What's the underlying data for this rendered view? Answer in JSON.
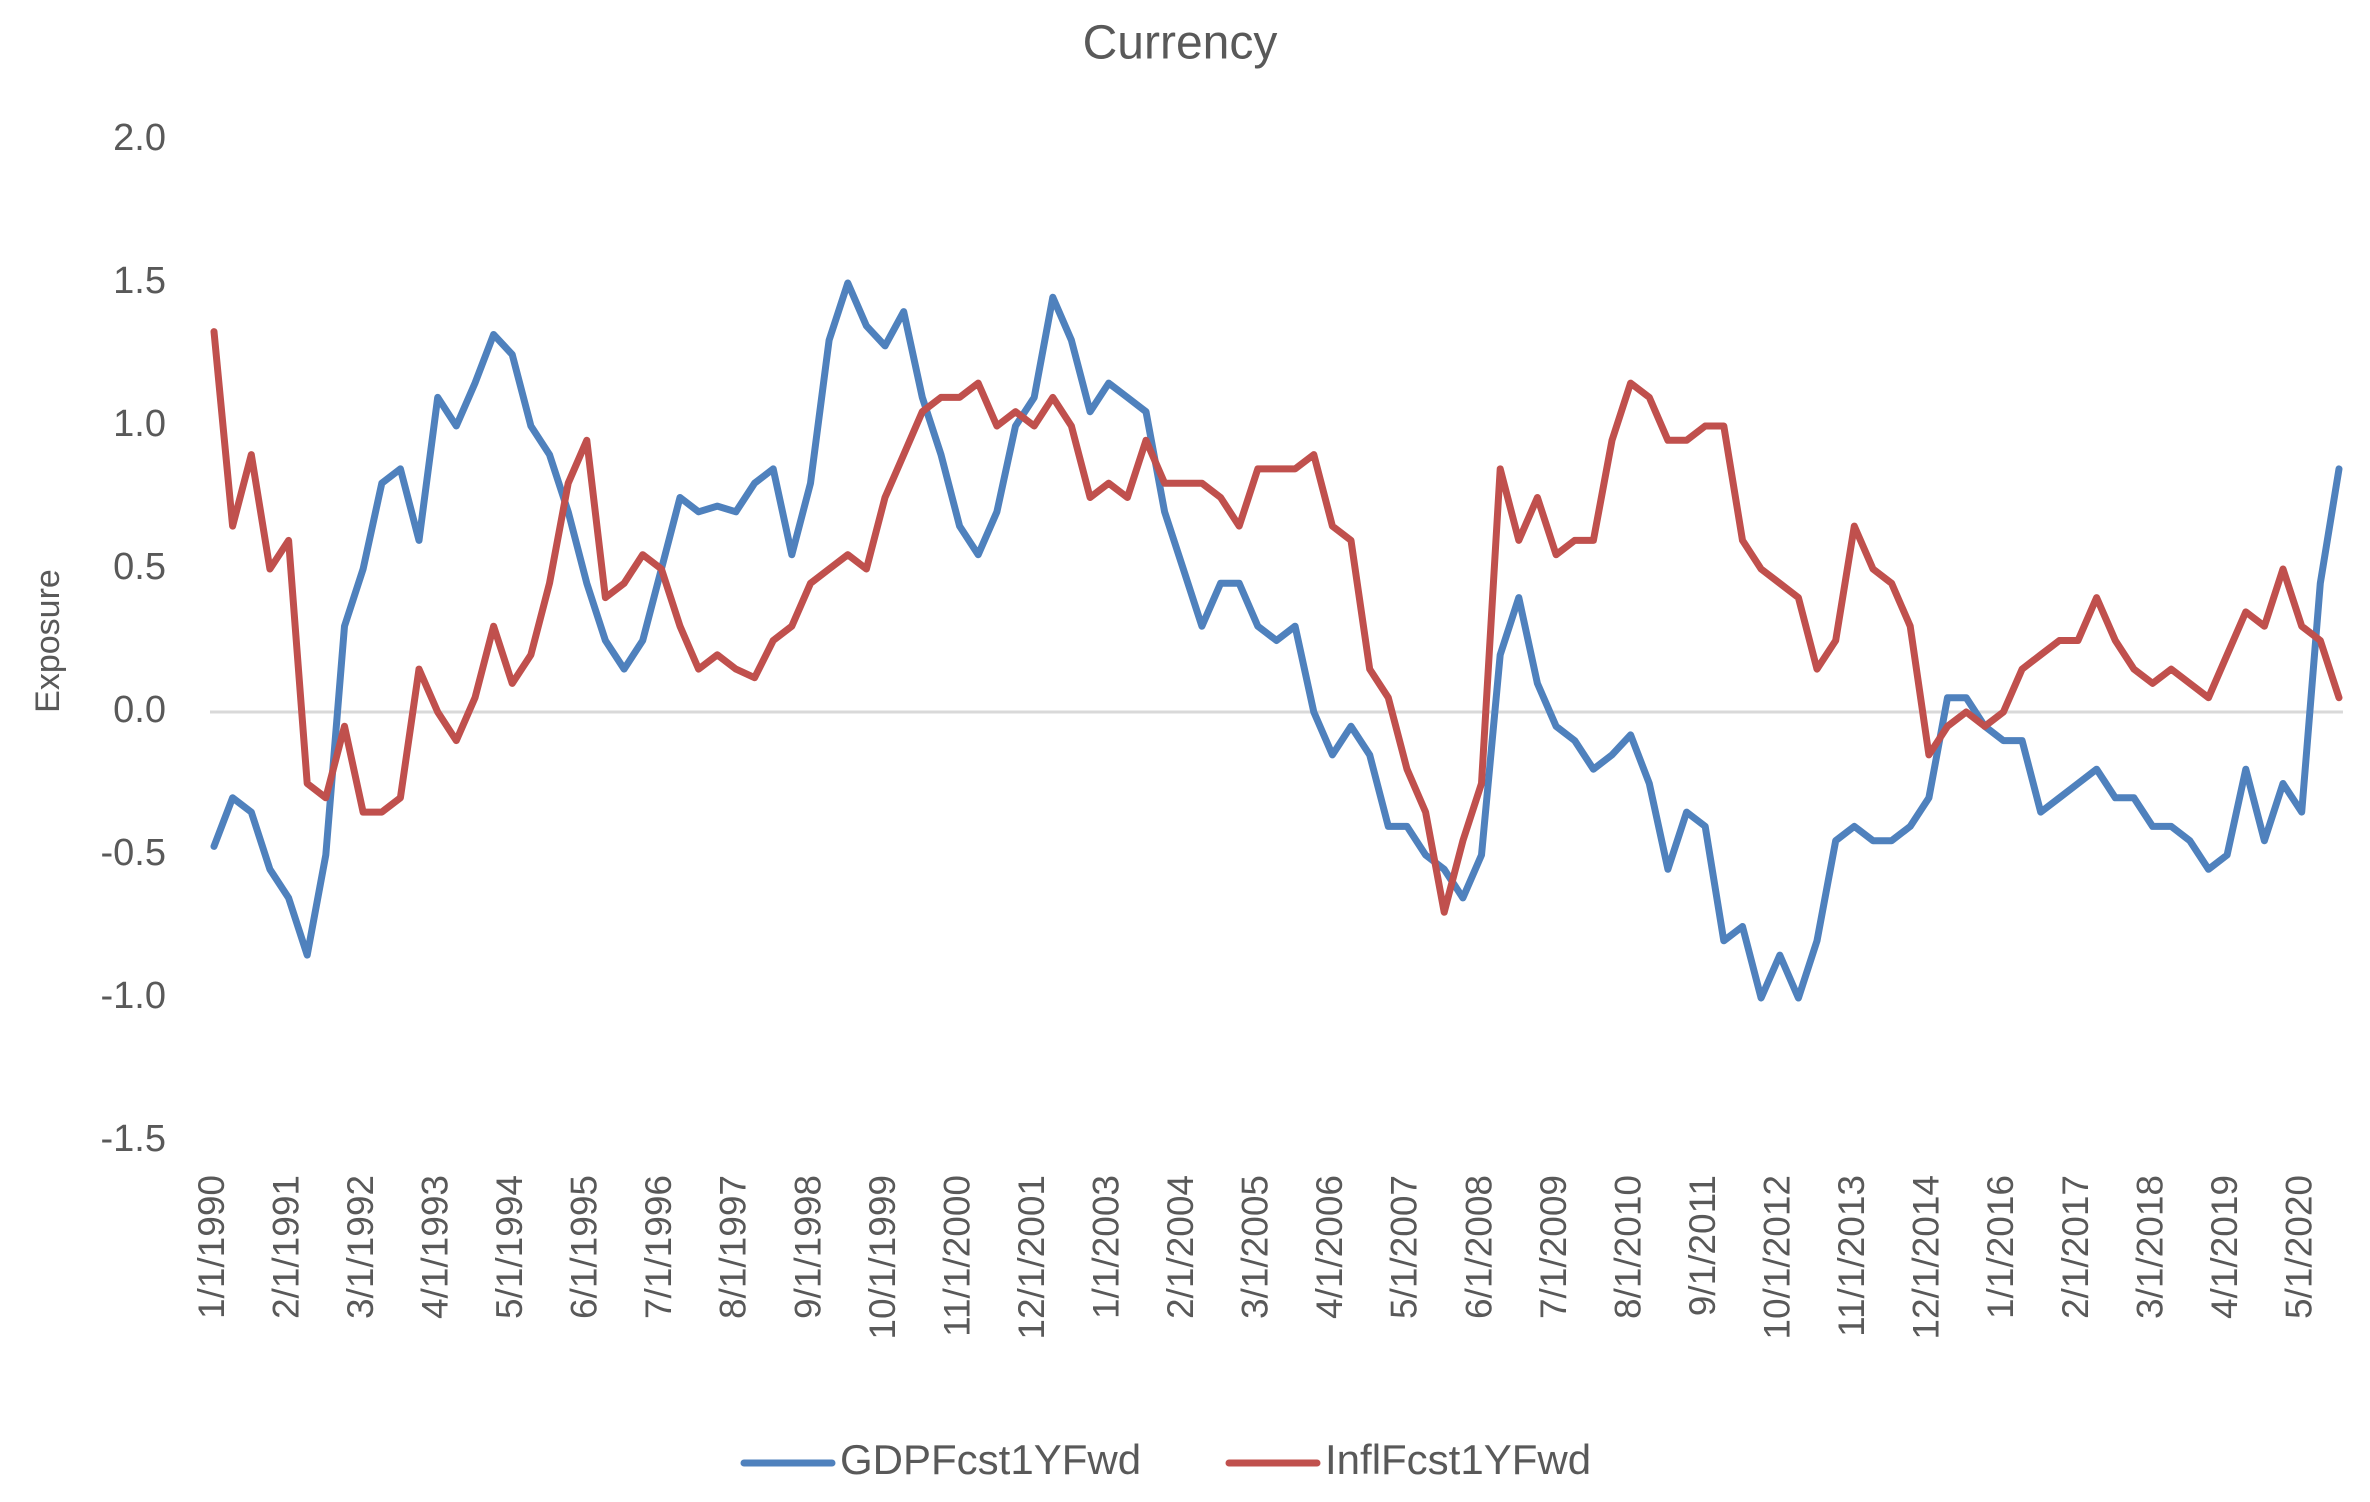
{
  "chart_data": {
    "type": "line",
    "title": "Currency",
    "y_label": "Exposure",
    "categories": [
      "1/1/1990",
      null,
      null,
      null,
      "2/1/1991",
      null,
      null,
      null,
      "3/1/1992",
      null,
      null,
      null,
      "4/1/1993",
      null,
      null,
      null,
      "5/1/1994",
      null,
      null,
      null,
      "6/1/1995",
      null,
      null,
      null,
      "7/1/1996",
      null,
      null,
      null,
      "8/1/1997",
      null,
      null,
      null,
      "9/1/1998",
      null,
      null,
      null,
      "10/1/1999",
      null,
      null,
      null,
      "11/1/2000",
      null,
      null,
      null,
      "12/1/2001",
      null,
      null,
      null,
      "1/1/2003",
      null,
      null,
      null,
      "2/1/2004",
      null,
      null,
      null,
      "3/1/2005",
      null,
      null,
      null,
      "4/1/2006",
      null,
      null,
      null,
      "5/1/2007",
      null,
      null,
      null,
      "6/1/2008",
      null,
      null,
      null,
      "7/1/2009",
      null,
      null,
      null,
      "8/1/2010",
      null,
      null,
      null,
      "9/1/2011",
      null,
      null,
      null,
      "10/1/2012",
      null,
      null,
      null,
      "11/1/2013",
      null,
      null,
      null,
      "12/1/2014",
      null,
      null,
      null,
      "1/1/2016",
      null,
      null,
      null,
      "2/1/2017",
      null,
      null,
      null,
      "3/1/2018",
      null,
      null,
      null,
      "4/1/2019",
      null,
      null,
      null,
      "5/1/2020",
      null,
      null
    ],
    "series": [
      {
        "name": "GDPFcst1YFwd",
        "color": "#4f81bd",
        "values": [
          -0.47,
          -0.3,
          -0.35,
          -0.55,
          -0.65,
          -0.85,
          -0.5,
          0.3,
          0.5,
          0.8,
          0.85,
          0.6,
          1.1,
          1.0,
          1.15,
          1.32,
          1.25,
          1.0,
          0.9,
          0.7,
          0.45,
          0.25,
          0.15,
          0.25,
          0.5,
          0.75,
          0.7,
          0.72,
          0.7,
          0.8,
          0.85,
          0.55,
          0.8,
          1.3,
          1.5,
          1.35,
          1.28,
          1.4,
          1.1,
          0.9,
          0.65,
          0.55,
          0.7,
          1.0,
          1.1,
          1.45,
          1.3,
          1.05,
          1.15,
          1.1,
          1.05,
          0.7,
          0.5,
          0.3,
          0.45,
          0.45,
          0.3,
          0.25,
          0.3,
          0.0,
          -0.15,
          -0.05,
          -0.15,
          -0.4,
          -0.4,
          -0.5,
          -0.55,
          -0.65,
          -0.5,
          0.2,
          0.4,
          0.1,
          -0.05,
          -0.1,
          -0.2,
          -0.15,
          -0.08,
          -0.25,
          -0.55,
          -0.35,
          -0.4,
          -0.8,
          -0.75,
          -1.0,
          -0.85,
          -1.0,
          -0.8,
          -0.45,
          -0.4,
          -0.45,
          -0.45,
          -0.4,
          -0.3,
          0.05,
          0.05,
          -0.05,
          -0.1,
          -0.1,
          -0.35,
          -0.3,
          -0.25,
          -0.2,
          -0.3,
          -0.3,
          -0.4,
          -0.4,
          -0.45,
          -0.55,
          -0.5,
          -0.2,
          -0.45,
          -0.25,
          -0.35,
          0.45,
          0.85
        ]
      },
      {
        "name": "InflFcst1YFwd",
        "color": "#c0504d",
        "values": [
          1.33,
          0.65,
          0.9,
          0.5,
          0.6,
          -0.25,
          -0.3,
          -0.05,
          -0.35,
          -0.35,
          -0.3,
          0.15,
          0.0,
          -0.1,
          0.05,
          0.3,
          0.1,
          0.2,
          0.45,
          0.8,
          0.95,
          0.4,
          0.45,
          0.55,
          0.5,
          0.3,
          0.15,
          0.2,
          0.15,
          0.12,
          0.25,
          0.3,
          0.45,
          0.5,
          0.55,
          0.5,
          0.75,
          0.9,
          1.05,
          1.1,
          1.1,
          1.15,
          1.0,
          1.05,
          1.0,
          1.1,
          1.0,
          0.75,
          0.8,
          0.75,
          0.95,
          0.8,
          0.8,
          0.8,
          0.75,
          0.65,
          0.85,
          0.85,
          0.85,
          0.9,
          0.65,
          0.6,
          0.15,
          0.05,
          -0.2,
          -0.35,
          -0.7,
          -0.45,
          -0.25,
          0.85,
          0.6,
          0.75,
          0.55,
          0.6,
          0.6,
          0.95,
          1.15,
          1.1,
          0.95,
          0.95,
          1.0,
          1.0,
          0.6,
          0.5,
          0.45,
          0.4,
          0.15,
          0.25,
          0.65,
          0.5,
          0.45,
          0.3,
          -0.15,
          -0.05,
          0.0,
          -0.05,
          0.0,
          0.15,
          0.2,
          0.25,
          0.25,
          0.4,
          0.25,
          0.15,
          0.1,
          0.15,
          0.1,
          0.05,
          0.2,
          0.35,
          0.3,
          0.5,
          0.3,
          0.25,
          0.05
        ]
      }
    ],
    "ylim": [
      -1.5,
      2
    ],
    "yticks": [
      -1.5,
      {
        "value": -1,
        "label": "-1.0"
      },
      -0.5,
      {
        "value": 0,
        "label": "0.0"
      },
      0.5,
      {
        "value": 1,
        "label": "1.0"
      },
      1.5,
      {
        "value": 2,
        "label": "2.0"
      }
    ],
    "grid": false,
    "legend": "bottom"
  }
}
